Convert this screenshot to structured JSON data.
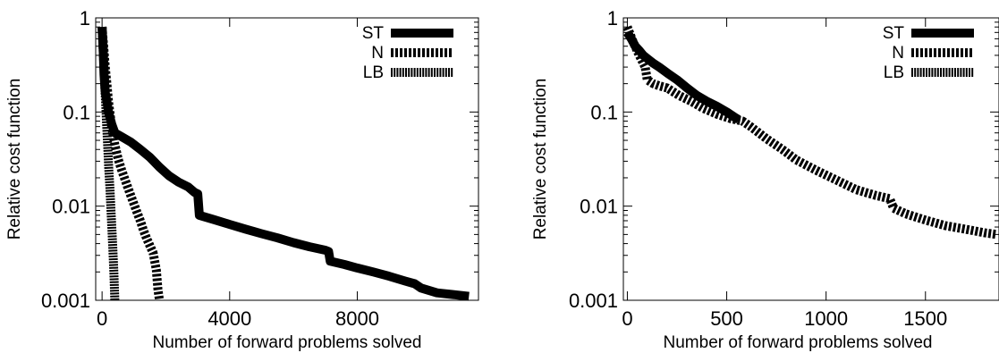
{
  "chart_data": [
    {
      "type": "line",
      "title": "",
      "xlabel": "Number of forward problems solved",
      "ylabel": "Relative cost function",
      "yscale": "log",
      "xlim": [
        -200,
        11800
      ],
      "ylim": [
        0.001,
        1
      ],
      "xticks": [
        0,
        4000,
        8000
      ],
      "xtick_labels": [
        "0",
        "4000",
        "8000"
      ],
      "yticks": [
        1,
        0.1,
        0.01,
        0.001
      ],
      "ytick_labels": [
        "1",
        "0.1",
        "0.01",
        "0.001"
      ],
      "grid": false,
      "legend_position": "top-right",
      "series": [
        {
          "name": "ST",
          "style": "solid",
          "x": [
            0,
            20,
            40,
            60,
            80,
            100,
            150,
            200,
            300,
            400,
            600,
            900,
            1200,
            1500,
            1800,
            2100,
            2400,
            2700,
            2900,
            3000,
            3050,
            3500,
            4000,
            4500,
            5000,
            5500,
            6000,
            6500,
            7000,
            7100,
            7150,
            7600,
            8000,
            8500,
            9000,
            9500,
            9800,
            10000,
            10500,
            11000,
            11500
          ],
          "y": [
            0.8,
            0.6,
            0.4,
            0.25,
            0.2,
            0.16,
            0.13,
            0.1,
            0.075,
            0.06,
            0.055,
            0.048,
            0.04,
            0.033,
            0.026,
            0.021,
            0.018,
            0.016,
            0.014,
            0.0135,
            0.008,
            0.0072,
            0.0064,
            0.0057,
            0.0051,
            0.0046,
            0.0041,
            0.0037,
            0.0034,
            0.0033,
            0.0026,
            0.0024,
            0.0022,
            0.002,
            0.0018,
            0.0016,
            0.0015,
            0.00135,
            0.0012,
            0.00115,
            0.0011
          ]
        },
        {
          "name": "N",
          "style": "wide-dash",
          "x": [
            0,
            50,
            100,
            150,
            200,
            300,
            400,
            500,
            600,
            700,
            800,
            900,
            1000,
            1100,
            1200,
            1300,
            1400,
            1500,
            1600,
            1700,
            1750,
            1800
          ],
          "y": [
            0.8,
            0.5,
            0.3,
            0.2,
            0.13,
            0.07,
            0.045,
            0.032,
            0.025,
            0.02,
            0.016,
            0.013,
            0.0105,
            0.0085,
            0.007,
            0.0055,
            0.0045,
            0.0038,
            0.0032,
            0.0021,
            0.0013,
            0.001
          ]
        },
        {
          "name": "LB",
          "style": "fine-dash",
          "x": [
            0,
            30,
            60,
            90,
            120,
            150,
            180,
            210,
            250,
            280,
            310,
            340,
            370,
            400
          ],
          "y": [
            0.8,
            0.5,
            0.3,
            0.18,
            0.11,
            0.065,
            0.04,
            0.025,
            0.015,
            0.009,
            0.0055,
            0.0033,
            0.002,
            0.001
          ]
        }
      ]
    },
    {
      "type": "line",
      "title": "",
      "xlabel": "Number of forward problems solved",
      "ylabel": "Relative cost function",
      "yscale": "log",
      "xlim": [
        -20,
        1870
      ],
      "ylim": [
        0.001,
        1
      ],
      "xticks": [
        0,
        500,
        1000,
        1500
      ],
      "xtick_labels": [
        "0",
        "500",
        "1000",
        "1500"
      ],
      "yticks": [
        1,
        0.1,
        0.01,
        0.001
      ],
      "ytick_labels": [
        "1",
        "0.1",
        "0.01",
        "0.001"
      ],
      "grid": false,
      "legend_position": "top-right",
      "series": [
        {
          "name": "ST",
          "style": "solid",
          "x": [
            0,
            20,
            40,
            60,
            80,
            100,
            130,
            160,
            200,
            250,
            300,
            350,
            400,
            450,
            500,
            540,
            560
          ],
          "y": [
            0.7,
            0.6,
            0.5,
            0.45,
            0.4,
            0.37,
            0.33,
            0.3,
            0.26,
            0.22,
            0.18,
            0.15,
            0.13,
            0.115,
            0.1,
            0.088,
            0.083
          ]
        },
        {
          "name": "N",
          "style": "wide-dash",
          "x": [
            0,
            30,
            60,
            90,
            100,
            130,
            160,
            200,
            260,
            320,
            380,
            450,
            520,
            580,
            620,
            700,
            780,
            850,
            950,
            1050,
            1150,
            1250,
            1320,
            1340,
            1400,
            1500,
            1600,
            1700,
            1800,
            1860
          ],
          "y": [
            0.8,
            0.55,
            0.4,
            0.3,
            0.22,
            0.2,
            0.19,
            0.18,
            0.15,
            0.13,
            0.11,
            0.095,
            0.085,
            0.08,
            0.07,
            0.052,
            0.04,
            0.031,
            0.024,
            0.019,
            0.015,
            0.013,
            0.012,
            0.0095,
            0.0083,
            0.0071,
            0.0062,
            0.0057,
            0.0052,
            0.005
          ]
        },
        {
          "name": "LB",
          "style": "fine-dash",
          "x": [],
          "y": []
        }
      ]
    }
  ]
}
